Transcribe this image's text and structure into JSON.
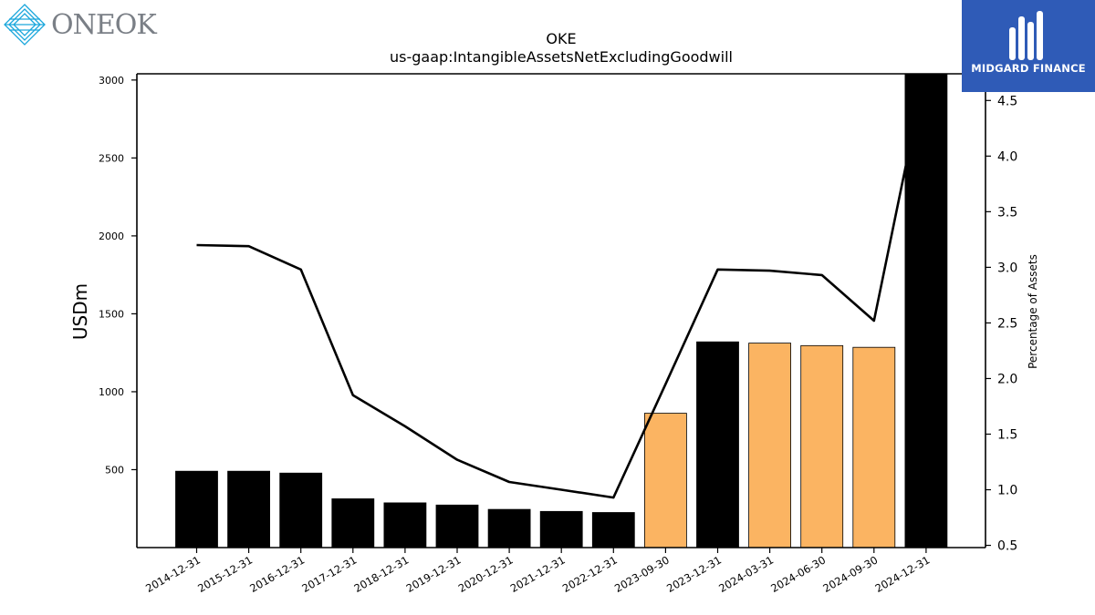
{
  "logos": {
    "left": {
      "name": "ONEOK",
      "icon": "oneok-diamond-logo"
    },
    "right": {
      "name": "MIDGARD FINANCE",
      "icon": "midgard-finance-logo",
      "color": "#2f5bb7"
    }
  },
  "chart_data": {
    "type": "bar",
    "title": "OKE",
    "subtitle": "us-gaap:IntangibleAssetsNetExcludingGoodwill",
    "ylabel": "USDm",
    "y2label": "Percentage of Assets",
    "categories": [
      "2014-12-31",
      "2015-12-31",
      "2016-12-31",
      "2017-12-31",
      "2018-12-31",
      "2019-12-31",
      "2020-12-31",
      "2021-12-31",
      "2022-12-31",
      "2023-09-30",
      "2023-12-31",
      "2024-03-31",
      "2024-06-30",
      "2024-09-30",
      "2024-12-31"
    ],
    "values": [
      490,
      490,
      478,
      313,
      287,
      273,
      245,
      232,
      225,
      862,
      1320,
      1312,
      1296,
      1285,
      3040
    ],
    "bar_colors": [
      "#000000",
      "#000000",
      "#000000",
      "#000000",
      "#000000",
      "#000000",
      "#000000",
      "#000000",
      "#000000",
      "#fbb462",
      "#000000",
      "#fbb462",
      "#fbb462",
      "#fbb462",
      "#000000"
    ],
    "line_series": {
      "name": "Percentage of Assets",
      "values": [
        3.2,
        3.19,
        2.98,
        1.85,
        1.57,
        1.27,
        1.07,
        1.0,
        0.93,
        1.95,
        2.98,
        2.97,
        2.93,
        2.52,
        4.8
      ],
      "color": "#000000"
    },
    "ylim": [
      0,
      3040
    ],
    "y_ticks": [
      500,
      1000,
      1500,
      2000,
      2500,
      3000
    ],
    "y2lim": [
      0.48,
      4.74
    ],
    "y2_ticks": [
      0.5,
      1.0,
      1.5,
      2.0,
      2.5,
      3.0,
      3.5,
      4.0,
      4.5
    ],
    "grid": false
  }
}
